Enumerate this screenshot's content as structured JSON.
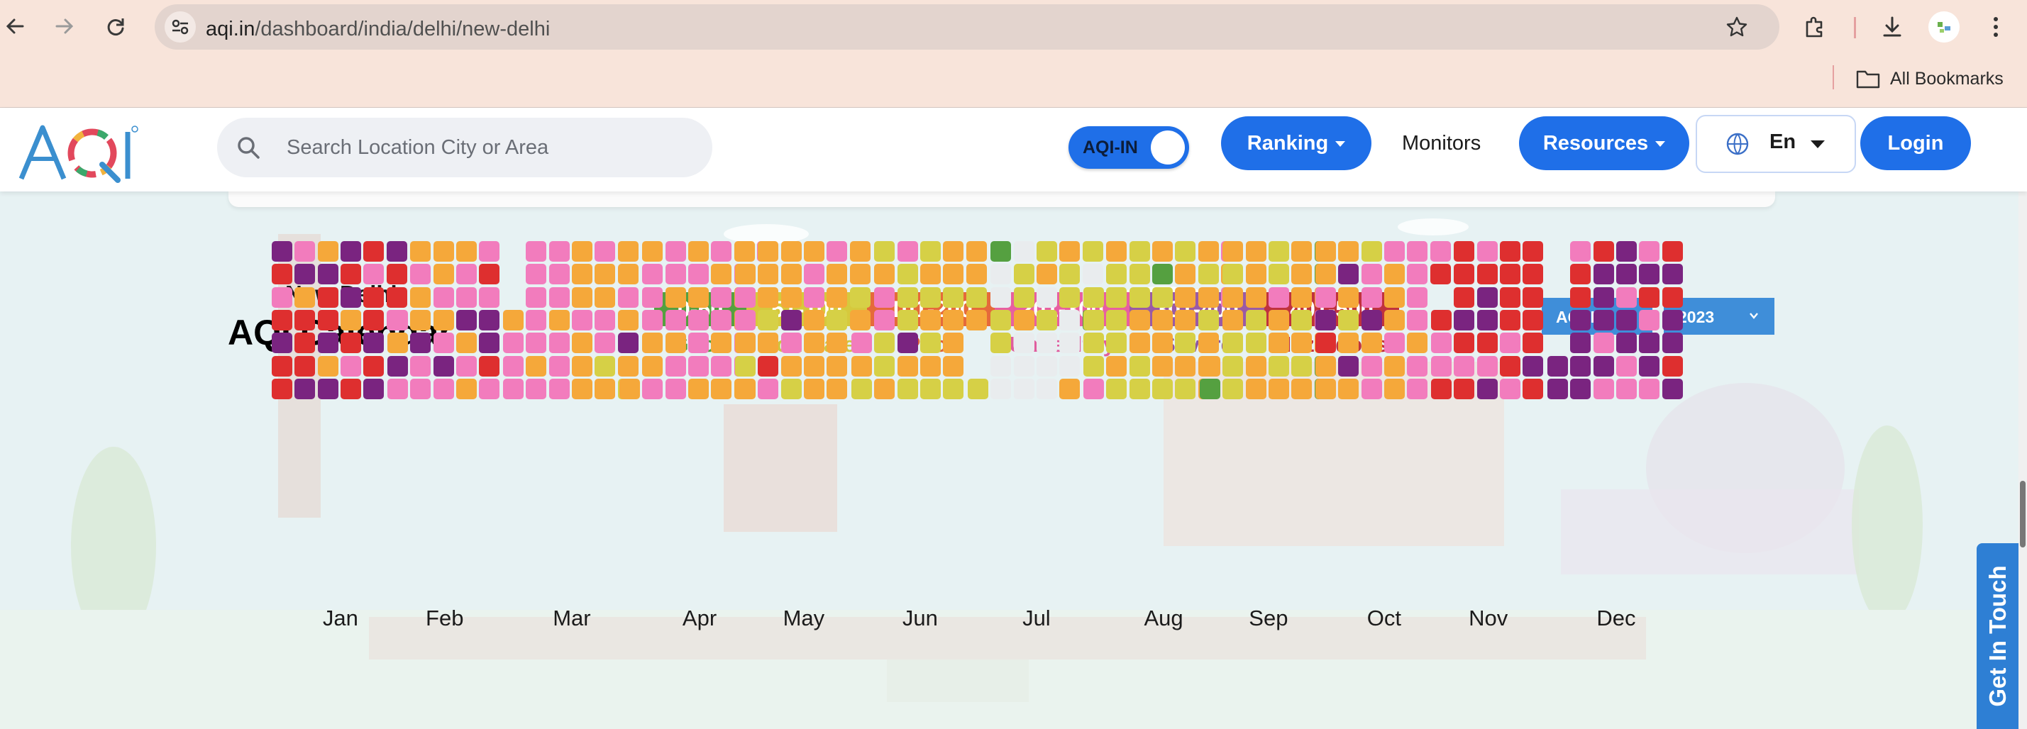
{
  "browser": {
    "url_host": "aqi.in",
    "url_path": "/dashboard/india/delhi/new-delhi",
    "bookmarks_label": "All Bookmarks",
    "icons": [
      "back-icon",
      "forward-icon",
      "reload-icon",
      "site-settings-icon",
      "star-icon",
      "extensions-icon",
      "download-icon",
      "profile-icon",
      "menu-icon"
    ]
  },
  "header": {
    "logo_text": "AQI",
    "search_placeholder": "Search Location City or Area",
    "toggle_label": "AQI-IN",
    "ranking_label": "Ranking",
    "monitors_label": "Monitors",
    "resources_label": "Resources",
    "language_label": "En",
    "login_label": "Login"
  },
  "calendar": {
    "city": "New Delhi",
    "title": "AQI Calendar",
    "index_select": "AQI-IN",
    "year_select": "2023",
    "legend": [
      {
        "range": "0-50",
        "name": "Good",
        "color": "#55a040",
        "text_color": "#55a040"
      },
      {
        "range": "51-100",
        "name": "Moderate",
        "color": "#d6c93d",
        "text_color": "#cfc640"
      },
      {
        "range": "101-200",
        "name": "Poor",
        "color": "#e56a3a",
        "text_color": "#e0643a"
      },
      {
        "range": "201-300",
        "name": "Unhealthy",
        "color": "#e85fa0",
        "text_color": "#e05d9e"
      },
      {
        "range": "301-400",
        "name": "Severe",
        "color": "#9a5aa5",
        "text_color": "#8d57a0"
      },
      {
        "range": "401-500",
        "name": "Hazardous",
        "color": "#c0323d",
        "text_color": "#c0323d"
      }
    ],
    "cell_colors": {
      "G": "#55a040",
      "Y": "#d6d046",
      "O": "#f5a83a",
      "K": "#f27cbd",
      "V": "#7a2480",
      "R": "#de2f2f",
      "L": "#e9ecee"
    },
    "months": [
      {
        "label": "Jan",
        "start": 0,
        "days": "VRKRVRRKVORRRVOVRRVOVVRVORKRRKRRVRVVRRK"
      },
      {
        "label": "Feb",
        "start": 3,
        "days": "KOVKOKOOVKKOOKOKVKOKKVOKOKRKVVRK"
      },
      {
        "label": "Mar",
        "start": 3,
        "days": "OKKKKKKKKOKKKKOKKKOOOKOOOKOOKKYOOOKOVOY"
      },
      {
        "label": "Apr",
        "start": 6,
        "days": "OOKKKOOKKKOKOKKOKOKKKOKOKKOKOOKOOKKOK"
      },
      {
        "label": "May",
        "start": 1,
        "days": "OKKOYOOOOYORKOOOVKOYOKKOOOOKOOYOOOOOYO"
      },
      {
        "label": "Jun",
        "start": 4,
        "days": "KOYYOKKYYOKYYYVOYYOYOYOYOOYOOOYOOYO"
      },
      {
        "label": "Jul",
        "start": 6,
        "days": "YGLLYYLLLYYOLLLYOLYLLLOYYLLLOYLLGL"
      },
      {
        "label": "Aug",
        "start": 2,
        "days": "YYYYKOYYYYOYYYYOOYYOGYOOOYYOOOYOYOYOYOOOKOK"
      },
      {
        "label": "Sep",
        "start": 5,
        "days": "OGOYOOYYYOOOYYOOYYKOOYOOOOYOYOGGOKOGG"
      },
      {
        "label": "Oct",
        "start": 0,
        "days": "OOKVROOOVOYOVOYKKVOKKKOOOKOOKKKKOKKKR"
      },
      {
        "label": "Nov",
        "start": 3,
        "days": "RKKRRRRVRKRKRVVRKVRRRRKRKRRRRRVR"
      },
      {
        "label": "Dec",
        "start": 5,
        "days": "VVKRRVVVVRVVVKVKVVKVVKKKVRKVVKRVRVVRV"
      }
    ],
    "get_in_touch": "Get In Touch"
  }
}
